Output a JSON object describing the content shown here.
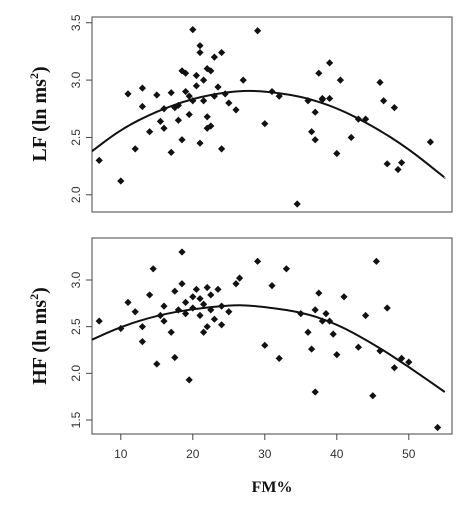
{
  "chart_data": [
    {
      "type": "scatter",
      "ylabel": "LF (ln ms²)",
      "ylabel_main": "LF (ln ms",
      "ylabel_sup": "2",
      "ylabel_close": ")",
      "xlim": [
        6,
        56
      ],
      "ylim": [
        1.85,
        3.55
      ],
      "yticks": [
        2.0,
        2.5,
        3.0,
        3.5
      ],
      "ytick_labels": [
        "2.0",
        "2.5",
        "3.0",
        "3.5"
      ],
      "fit": "quadratic",
      "curve": [
        [
          6,
          2.38
        ],
        [
          10,
          2.57
        ],
        [
          15,
          2.73
        ],
        [
          20,
          2.84
        ],
        [
          25,
          2.9
        ],
        [
          29,
          2.91
        ],
        [
          35,
          2.86
        ],
        [
          40,
          2.76
        ],
        [
          45,
          2.6
        ],
        [
          50,
          2.4
        ],
        [
          55,
          2.15
        ]
      ],
      "points": [
        [
          7,
          2.3
        ],
        [
          10,
          2.12
        ],
        [
          11,
          2.88
        ],
        [
          12,
          2.4
        ],
        [
          13,
          2.77
        ],
        [
          13,
          2.93
        ],
        [
          14,
          2.55
        ],
        [
          15,
          2.87
        ],
        [
          15.5,
          2.64
        ],
        [
          16,
          2.58
        ],
        [
          16,
          2.75
        ],
        [
          17,
          2.37
        ],
        [
          17,
          2.89
        ],
        [
          17.5,
          2.76
        ],
        [
          18,
          2.65
        ],
        [
          18,
          2.78
        ],
        [
          18.5,
          2.48
        ],
        [
          18.5,
          3.08
        ],
        [
          19,
          3.06
        ],
        [
          19,
          2.9
        ],
        [
          19.5,
          2.7
        ],
        [
          19.5,
          2.86
        ],
        [
          20,
          3.44
        ],
        [
          20,
          2.82
        ],
        [
          20.5,
          3.04
        ],
        [
          20.5,
          2.95
        ],
        [
          21,
          2.45
        ],
        [
          21,
          3.3
        ],
        [
          21,
          3.24
        ],
        [
          21.5,
          3.0
        ],
        [
          21.5,
          2.82
        ],
        [
          22,
          2.58
        ],
        [
          22,
          3.1
        ],
        [
          22,
          2.68
        ],
        [
          22.5,
          3.08
        ],
        [
          22.5,
          2.6
        ],
        [
          23,
          3.2
        ],
        [
          23,
          2.86
        ],
        [
          23.5,
          2.94
        ],
        [
          24,
          3.24
        ],
        [
          24,
          2.4
        ],
        [
          24.5,
          2.88
        ],
        [
          25,
          2.8
        ],
        [
          26,
          2.74
        ],
        [
          27,
          3.0
        ],
        [
          29,
          3.43
        ],
        [
          30,
          2.62
        ],
        [
          31,
          2.9
        ],
        [
          32,
          2.86
        ],
        [
          34.5,
          1.92
        ],
        [
          36,
          2.82
        ],
        [
          36.5,
          2.55
        ],
        [
          37,
          2.72
        ],
        [
          37,
          2.48
        ],
        [
          37.5,
          3.06
        ],
        [
          38,
          2.84
        ],
        [
          38,
          2.83
        ],
        [
          39,
          3.15
        ],
        [
          39,
          2.84
        ],
        [
          40,
          2.36
        ],
        [
          40.5,
          3.0
        ],
        [
          42,
          2.5
        ],
        [
          43,
          2.66
        ],
        [
          44,
          2.66
        ],
        [
          46,
          2.98
        ],
        [
          46.5,
          2.82
        ],
        [
          47,
          2.27
        ],
        [
          48,
          2.76
        ],
        [
          48.5,
          2.22
        ],
        [
          49,
          2.28
        ],
        [
          53,
          2.46
        ]
      ]
    },
    {
      "type": "scatter",
      "ylabel": "HF (ln ms²)",
      "ylabel_main": "HF (ln ms",
      "ylabel_sup": "2",
      "ylabel_close": ")",
      "xlabel": "FM%",
      "xlim": [
        6,
        56
      ],
      "ylim": [
        1.35,
        3.45
      ],
      "xticks": [
        10,
        20,
        30,
        40,
        50
      ],
      "xtick_labels": [
        "10",
        "20",
        "30",
        "40",
        "50"
      ],
      "yticks": [
        1.5,
        2.0,
        2.5,
        3.0
      ],
      "ytick_labels": [
        "1.5",
        "2.0",
        "2.5",
        "3.0"
      ],
      "fit": "quadratic",
      "curve": [
        [
          6,
          2.36
        ],
        [
          10,
          2.5
        ],
        [
          15,
          2.62
        ],
        [
          20,
          2.69
        ],
        [
          25,
          2.73
        ],
        [
          28,
          2.73
        ],
        [
          35,
          2.66
        ],
        [
          40,
          2.53
        ],
        [
          45,
          2.32
        ],
        [
          50,
          2.07
        ],
        [
          55,
          1.8
        ]
      ],
      "points": [
        [
          7,
          2.56
        ],
        [
          10,
          2.48
        ],
        [
          11,
          2.76
        ],
        [
          12,
          2.66
        ],
        [
          13,
          2.34
        ],
        [
          13,
          2.5
        ],
        [
          14,
          2.84
        ],
        [
          14.5,
          3.12
        ],
        [
          15,
          2.1
        ],
        [
          15.5,
          2.62
        ],
        [
          16,
          2.72
        ],
        [
          16,
          2.56
        ],
        [
          17,
          2.44
        ],
        [
          17.5,
          2.17
        ],
        [
          17.5,
          2.88
        ],
        [
          18,
          2.68
        ],
        [
          18.5,
          3.3
        ],
        [
          18.5,
          2.96
        ],
        [
          19,
          2.76
        ],
        [
          19,
          2.64
        ],
        [
          19.5,
          1.93
        ],
        [
          20,
          2.82
        ],
        [
          20,
          2.7
        ],
        [
          20.5,
          2.9
        ],
        [
          21,
          2.62
        ],
        [
          21,
          2.8
        ],
        [
          21.5,
          2.44
        ],
        [
          21.5,
          2.74
        ],
        [
          22,
          2.5
        ],
        [
          22,
          2.92
        ],
        [
          22.5,
          2.68
        ],
        [
          22.5,
          2.84
        ],
        [
          23,
          2.58
        ],
        [
          23.5,
          2.9
        ],
        [
          24,
          2.72
        ],
        [
          24,
          2.52
        ],
        [
          25,
          2.66
        ],
        [
          26,
          2.96
        ],
        [
          26.5,
          3.02
        ],
        [
          29,
          3.2
        ],
        [
          30,
          2.3
        ],
        [
          31,
          2.94
        ],
        [
          32,
          2.16
        ],
        [
          33,
          3.12
        ],
        [
          35,
          2.64
        ],
        [
          36,
          2.44
        ],
        [
          36.5,
          2.26
        ],
        [
          37,
          1.8
        ],
        [
          37,
          2.68
        ],
        [
          37.5,
          2.86
        ],
        [
          38,
          2.56
        ],
        [
          38.5,
          2.64
        ],
        [
          39,
          2.56
        ],
        [
          39.5,
          2.42
        ],
        [
          40,
          2.2
        ],
        [
          41,
          2.82
        ],
        [
          43,
          2.28
        ],
        [
          44,
          2.62
        ],
        [
          45,
          1.76
        ],
        [
          45.5,
          3.2
        ],
        [
          46,
          2.24
        ],
        [
          47,
          2.7
        ],
        [
          48,
          2.06
        ],
        [
          49,
          2.16
        ],
        [
          50,
          2.12
        ],
        [
          54,
          1.42
        ]
      ]
    }
  ]
}
